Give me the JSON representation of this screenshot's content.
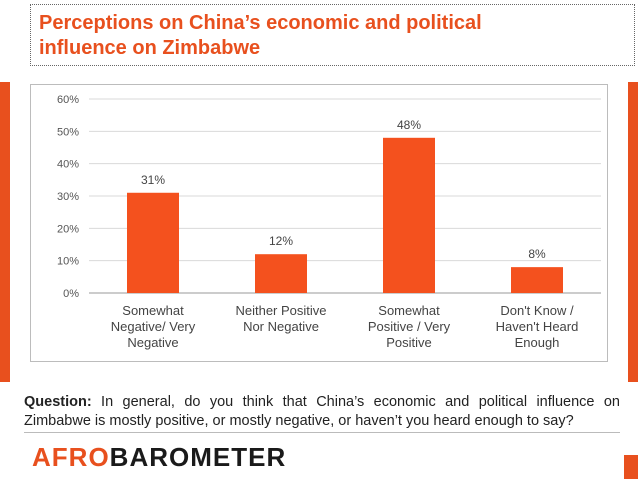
{
  "header": {
    "title_line1": "Perceptions on China’s economic and political",
    "title_line2": "influence on Zimbabwe"
  },
  "colors": {
    "accent": "#e8501e",
    "bar": "#f4511e",
    "text": "#222222",
    "grid": "#d9d9d9"
  },
  "chart_data": {
    "type": "bar",
    "categories": [
      [
        "Somewhat",
        "Negative/ Very",
        "Negative"
      ],
      [
        "Neither Positive",
        "Nor Negative"
      ],
      [
        "Somewhat",
        "Positive / Very",
        "Positive"
      ],
      [
        "Don't Know /",
        "Haven't Heard",
        "Enough"
      ]
    ],
    "values": [
      31,
      12,
      48,
      8
    ],
    "value_labels": [
      "31%",
      "12%",
      "48%",
      "8%"
    ],
    "y_ticks": [
      0,
      10,
      20,
      30,
      40,
      50,
      60
    ],
    "y_tick_labels": [
      "0%",
      "10%",
      "20%",
      "30%",
      "40%",
      "50%",
      "60%"
    ],
    "ylim": [
      0,
      60
    ],
    "grid": true,
    "legend": "none"
  },
  "question": {
    "label": "Question:",
    "text": " In general, do you think that China’s economic and political influence on Zimbabwe is mostly positive, or mostly negative, or haven’t you heard enough to say?"
  },
  "footer": {
    "logo_part1": "AFR",
    "logo_o": "O",
    "logo_part2": "BAROMETER"
  }
}
